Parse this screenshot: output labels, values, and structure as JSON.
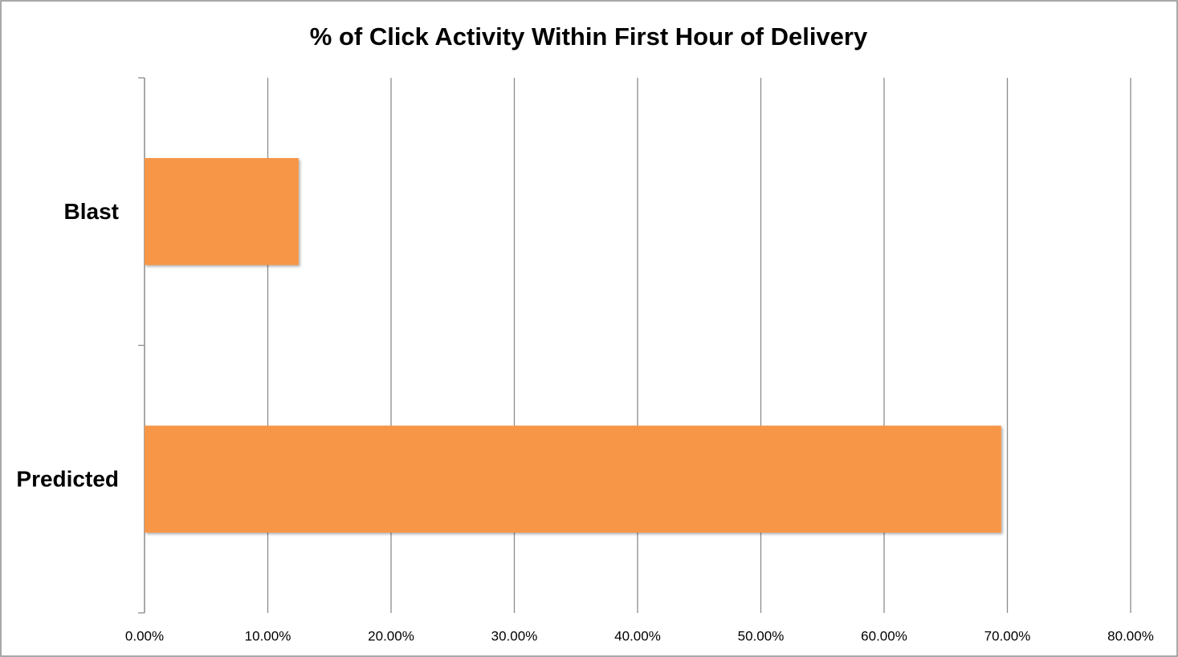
{
  "chart_data": {
    "type": "bar",
    "orientation": "horizontal",
    "title": "% of Click Activity Within First Hour of Delivery",
    "categories": [
      "Blast",
      "Predicted"
    ],
    "values": [
      12.5,
      69.5
    ],
    "color": "#f79646",
    "xlim": [
      0,
      80
    ],
    "xticks": [
      {
        "value": 0,
        "label": "0.00%"
      },
      {
        "value": 10,
        "label": "10.00%"
      },
      {
        "value": 20,
        "label": "20.00%"
      },
      {
        "value": 30,
        "label": "30.00%"
      },
      {
        "value": 40,
        "label": "40.00%"
      },
      {
        "value": 50,
        "label": "50.00%"
      },
      {
        "value": 60,
        "label": "60.00%"
      },
      {
        "value": 70,
        "label": "70.00%"
      },
      {
        "value": 80,
        "label": "80.00%"
      }
    ],
    "grid": true
  }
}
